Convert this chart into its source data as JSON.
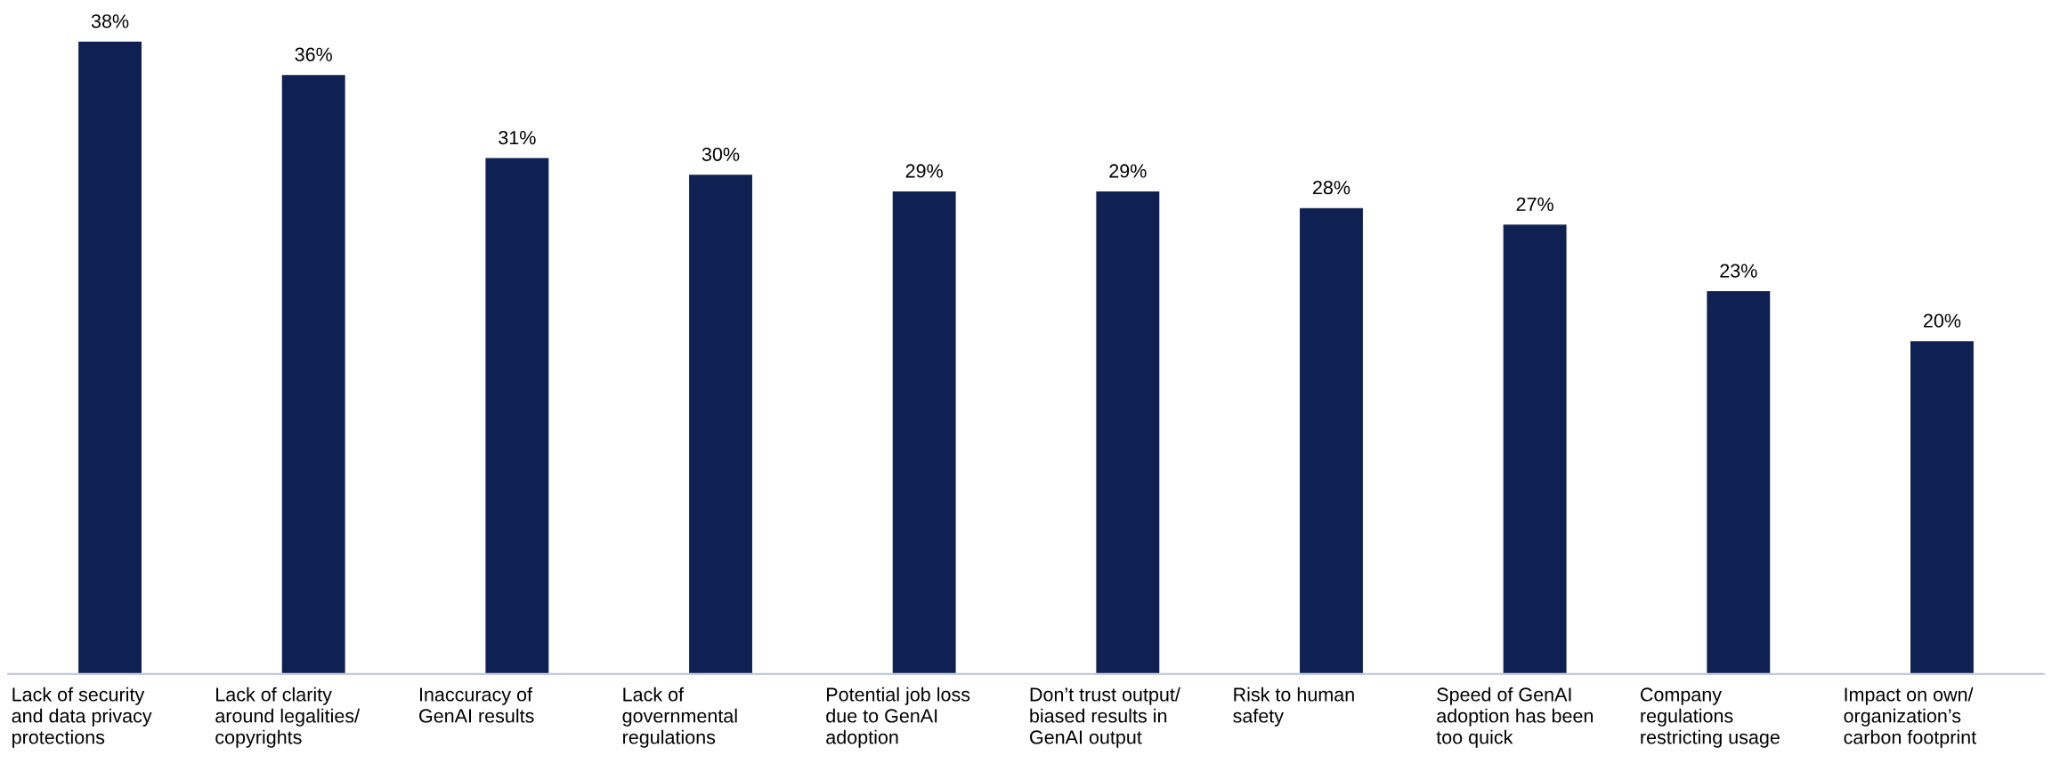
{
  "chart_data": {
    "type": "bar",
    "categories": [
      "Lack of security\nand data privacy\nprotections",
      "Lack of clarity\naround legalities/\ncopyrights",
      "Inaccuracy of\nGenAI results",
      "Lack of\ngovernmental\nregulations",
      "Potential job loss\ndue to GenAI\nadoption",
      "Don’t trust output/\nbiased results in\nGenAI output",
      "Risk to human\nsafety",
      "Speed of GenAI\nadoption has been\ntoo quick",
      "Company\nregulations\nrestricting usage",
      "Impact on own/\norganization’s\ncarbon footprint"
    ],
    "values": [
      38,
      36,
      31,
      30,
      29,
      29,
      28,
      27,
      23,
      20
    ],
    "value_labels": [
      "38%",
      "36%",
      "31%",
      "30%",
      "29%",
      "29%",
      "28%",
      "27%",
      "23%",
      "20%"
    ],
    "color": "#0f2052"
  }
}
